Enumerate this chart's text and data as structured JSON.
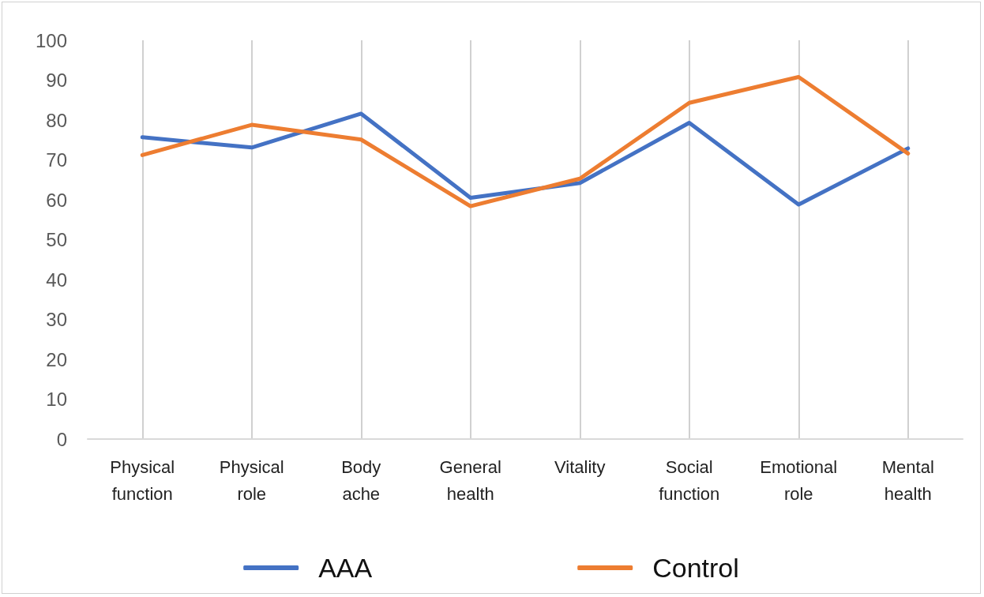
{
  "chart_data": {
    "type": "line",
    "categories": [
      "Physical\nfunction",
      "Physical\nrole",
      "Body\nache",
      "General\nhealth",
      "Vitality",
      "Social\nfunction",
      "Emotional\nrole",
      "Mental\nhealth"
    ],
    "series": [
      {
        "name": "AAA",
        "color": "#4472c4",
        "values": [
          75.7,
          73.1,
          81.6,
          60.5,
          64.2,
          79.3,
          58.8,
          72.9
        ]
      },
      {
        "name": "Control",
        "color": "#ed7d31",
        "values": [
          71.2,
          78.8,
          75.1,
          58.4,
          65.3,
          84.3,
          90.8,
          71.6
        ]
      }
    ],
    "ylim": [
      0,
      100
    ],
    "yticks": [
      0,
      10,
      20,
      30,
      40,
      50,
      60,
      70,
      80,
      90,
      100
    ],
    "grid": "x",
    "legend": "bottom",
    "marker": "none",
    "line_style": "solid"
  }
}
